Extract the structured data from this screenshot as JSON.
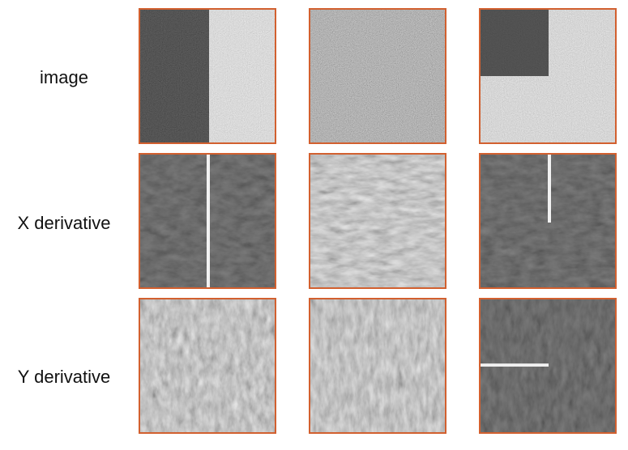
{
  "rows": [
    {
      "label": "image"
    },
    {
      "label": "X derivative"
    },
    {
      "label": "Y derivative"
    }
  ],
  "colors": {
    "frame_border": "#d2602f",
    "background": "#ffffff",
    "edge_highlight": "#f2f2f2"
  },
  "panels": [
    {
      "row": "image",
      "column": 1,
      "kind": "noise",
      "content": "dark-left-half-light-right-half"
    },
    {
      "row": "image",
      "column": 2,
      "kind": "noise",
      "content": "uniform-gray"
    },
    {
      "row": "image",
      "column": 3,
      "kind": "noise",
      "content": "dark-top-left-square-on-light"
    },
    {
      "row": "X derivative",
      "column": 1,
      "kind": "derivative",
      "content": "full-vertical-edge-line"
    },
    {
      "row": "X derivative",
      "column": 2,
      "kind": "derivative",
      "content": "texture-only"
    },
    {
      "row": "X derivative",
      "column": 3,
      "kind": "derivative",
      "content": "half-vertical-edge-line"
    },
    {
      "row": "Y derivative",
      "column": 1,
      "kind": "derivative",
      "content": "texture-only"
    },
    {
      "row": "Y derivative",
      "column": 2,
      "kind": "derivative",
      "content": "texture-only"
    },
    {
      "row": "Y derivative",
      "column": 3,
      "kind": "derivative",
      "content": "half-horizontal-edge-line"
    }
  ]
}
